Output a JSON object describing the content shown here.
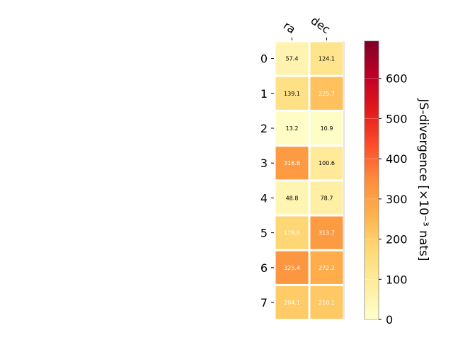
{
  "chart_data": {
    "type": "heatmap",
    "x_categories": [
      "ra",
      "dec"
    ],
    "y_categories": [
      "0",
      "1",
      "2",
      "3",
      "4",
      "5",
      "6",
      "7"
    ],
    "values": [
      [
        57.4,
        124.1
      ],
      [
        139.1,
        225.7
      ],
      [
        13.2,
        10.9
      ],
      [
        316.6,
        100.6
      ],
      [
        48.8,
        78.7
      ],
      [
        178.9,
        313.7
      ],
      [
        325.4,
        272.2
      ],
      [
        204.1,
        210.1
      ]
    ],
    "colorbar": {
      "label": "JS-divergence [×10⁻³ nats]",
      "range": [
        0,
        693
      ],
      "ticks": [
        0,
        100,
        200,
        300,
        400,
        500,
        600
      ],
      "colormap": "YlOrRd"
    },
    "text_color_threshold": 175
  }
}
